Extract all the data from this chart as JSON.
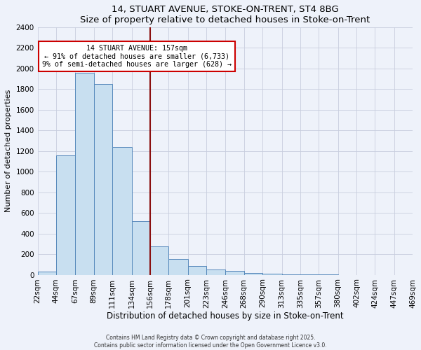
{
  "title": "14, STUART AVENUE, STOKE-ON-TRENT, ST4 8BG",
  "subtitle": "Size of property relative to detached houses in Stoke-on-Trent",
  "xlabel": "Distribution of detached houses by size in Stoke-on-Trent",
  "ylabel": "Number of detached properties",
  "bin_labels": [
    "22sqm",
    "44sqm",
    "67sqm",
    "89sqm",
    "111sqm",
    "134sqm",
    "156sqm",
    "178sqm",
    "201sqm",
    "223sqm",
    "246sqm",
    "268sqm",
    "290sqm",
    "313sqm",
    "335sqm",
    "357sqm",
    "380sqm",
    "402sqm",
    "424sqm",
    "447sqm",
    "469sqm"
  ],
  "bin_edges": [
    22,
    44,
    67,
    89,
    111,
    134,
    156,
    178,
    201,
    223,
    246,
    268,
    290,
    313,
    335,
    357,
    380,
    402,
    424,
    447,
    469
  ],
  "bar_heights": [
    30,
    1160,
    1960,
    1850,
    1240,
    520,
    275,
    150,
    85,
    48,
    38,
    18,
    10,
    2,
    1,
    1,
    0,
    0,
    0,
    0
  ],
  "bar_color": "#c8dff0",
  "bar_edge_color": "#5588bb",
  "bg_color": "#eef2fa",
  "grid_color": "#c8cede",
  "vline_x": 156,
  "vline_color": "#8b1010",
  "annotation_title": "14 STUART AVENUE: 157sqm",
  "annotation_line1": "← 91% of detached houses are smaller (6,733)",
  "annotation_line2": "9% of semi-detached houses are larger (628) →",
  "annotation_box_color": "#ffffff",
  "annotation_box_edge": "#cc0000",
  "ylim": [
    0,
    2400
  ],
  "yticks": [
    0,
    200,
    400,
    600,
    800,
    1000,
    1200,
    1400,
    1600,
    1800,
    2000,
    2200,
    2400
  ],
  "footer1": "Contains HM Land Registry data © Crown copyright and database right 2025.",
  "footer2": "Contains public sector information licensed under the Open Government Licence v3.0."
}
